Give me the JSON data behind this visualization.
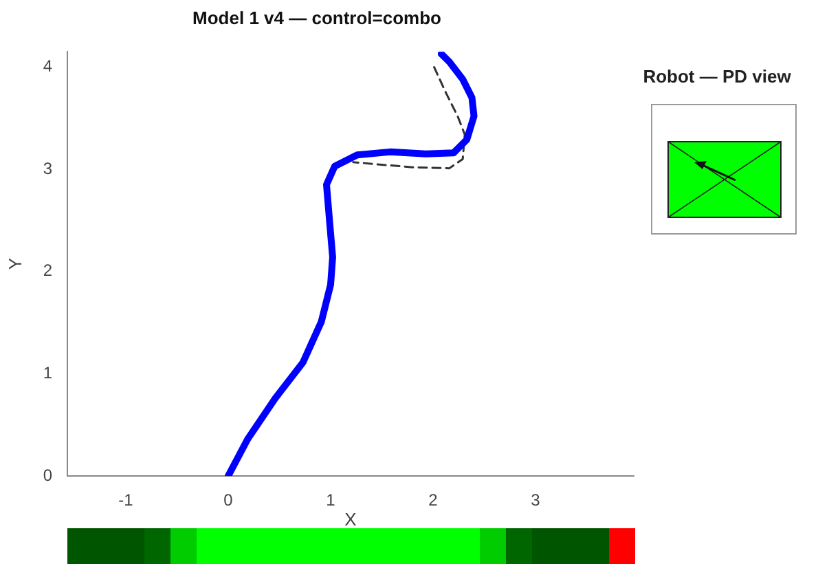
{
  "chart_data": {
    "type": "line",
    "title": "Model 1 v4 — control=combo",
    "xlabel": "X",
    "ylabel": "Y",
    "xlim": [
      -1.57,
      3.96
    ],
    "ylim": [
      0,
      4.15
    ],
    "xticks": [
      -1,
      0,
      1,
      2,
      3
    ],
    "yticks": [
      0,
      1,
      2,
      3,
      4
    ],
    "grid": false,
    "legend": false,
    "marker": "none",
    "annotations": [
      "Robot — PD view"
    ],
    "series": [
      {
        "color": "#0000ff",
        "line_style": "solid",
        "x": [
          0,
          0.19,
          0.46,
          0.73,
          0.91,
          1.0,
          1.02,
          0.99,
          0.96,
          1.04,
          1.26,
          1.58,
          1.93,
          2.2,
          2.33,
          2.4,
          2.38,
          2.29,
          2.16,
          2.08
        ],
        "values": [
          0,
          0.36,
          0.76,
          1.11,
          1.51,
          1.87,
          2.14,
          2.49,
          2.85,
          3.03,
          3.14,
          3.17,
          3.15,
          3.16,
          3.29,
          3.52,
          3.7,
          3.88,
          4.05,
          4.13
        ]
      },
      {
        "color": "#333333",
        "line_style": "dashed",
        "x": [
          2.01,
          2.13,
          2.24,
          2.31,
          2.29,
          2.16,
          1.8,
          1.44,
          1.22
        ],
        "values": [
          4.0,
          3.74,
          3.52,
          3.34,
          3.1,
          3.01,
          3.02,
          3.05,
          3.07
        ]
      }
    ]
  }
}
